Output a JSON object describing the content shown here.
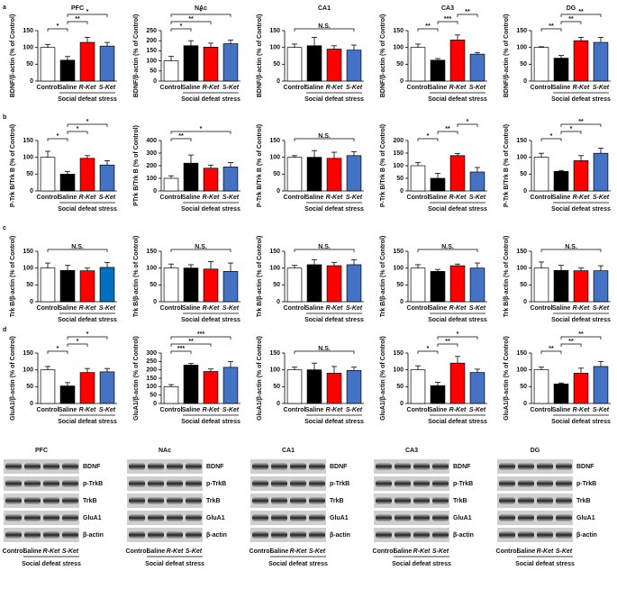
{
  "chart_data": [
    {
      "type": "bar",
      "panel": "a",
      "title": "PFC",
      "ylabel": "BDNF/β-actin (% of Control)",
      "categories": [
        "Control",
        "Saline",
        "R-Ket",
        "S-Ket"
      ],
      "group": "Social defeat stress",
      "colors": [
        "#ffffff",
        "#000000",
        "#ff0000",
        "#4472c4"
      ],
      "values": [
        100,
        62,
        115,
        104
      ],
      "errors": [
        9,
        11,
        15,
        11
      ],
      "ylim": [
        0,
        150
      ],
      "yticks": [
        0,
        50,
        100,
        150
      ],
      "significance": [
        {
          "label": "*",
          "from": 0,
          "to": 1
        },
        {
          "label": "**",
          "from": 1,
          "to": 2
        },
        {
          "label": "*",
          "from": 1,
          "to": 3
        }
      ]
    },
    {
      "type": "bar",
      "title": "NAc",
      "ylabel": "BDNF/β-actin (% of Control)",
      "categories": [
        "Control",
        "Saline",
        "R-Ket",
        "S-Ket"
      ],
      "group": "Social defeat stress",
      "colors": [
        "#ffffff",
        "#000000",
        "#ff0000",
        "#4472c4"
      ],
      "values": [
        100,
        175,
        168,
        185
      ],
      "errors": [
        22,
        25,
        20,
        18
      ],
      "ylim": [
        0,
        250
      ],
      "yticks": [
        0,
        50,
        100,
        150,
        200,
        250
      ],
      "significance": [
        {
          "label": "*",
          "from": 0,
          "to": 1
        },
        {
          "label": "**",
          "from": 0,
          "to": 2
        },
        {
          "label": "*",
          "from": 0,
          "to": 3
        }
      ]
    },
    {
      "type": "bar",
      "title": "CA1",
      "ylabel": "BDNF/β-actin (% of Control)",
      "categories": [
        "Control",
        "Saline",
        "R-Ket",
        "S-Ket"
      ],
      "group": "Social defeat stress",
      "colors": [
        "#ffffff",
        "#000000",
        "#ff0000",
        "#4472c4"
      ],
      "values": [
        100,
        105,
        95,
        92
      ],
      "errors": [
        10,
        25,
        10,
        15
      ],
      "ylim": [
        0,
        150
      ],
      "yticks": [
        0,
        50,
        100,
        150
      ],
      "significance": [
        {
          "label": "N.S.",
          "from": 0,
          "to": 3
        }
      ]
    },
    {
      "type": "bar",
      "title": "CA3",
      "ylabel": "BDNF/β-actin (% of Control)",
      "categories": [
        "Control",
        "Saline",
        "R-Ket",
        "S-Ket"
      ],
      "group": "Social defeat stress",
      "colors": [
        "#ffffff",
        "#000000",
        "#ff0000",
        "#4472c4"
      ],
      "values": [
        100,
        62,
        122,
        80
      ],
      "errors": [
        10,
        5,
        15,
        5
      ],
      "ylim": [
        0,
        150
      ],
      "yticks": [
        0,
        50,
        100,
        150
      ],
      "significance": [
        {
          "label": "**",
          "from": 0,
          "to": 1
        },
        {
          "label": "***",
          "from": 1,
          "to": 2
        },
        {
          "label": "**",
          "from": 2,
          "to": 3
        }
      ]
    },
    {
      "type": "bar",
      "title": "DG",
      "ylabel": "BDNF/β-actin (% of Control)",
      "categories": [
        "Control",
        "Saline",
        "R-Ket",
        "S-Ket"
      ],
      "group": "Social defeat stress",
      "colors": [
        "#ffffff",
        "#000000",
        "#ff0000",
        "#4472c4"
      ],
      "values": [
        100,
        68,
        120,
        115
      ],
      "errors": [
        2,
        8,
        10,
        15
      ],
      "ylim": [
        0,
        150
      ],
      "yticks": [
        0,
        50,
        100,
        150
      ],
      "significance": [
        {
          "label": "**",
          "from": 0,
          "to": 1
        },
        {
          "label": "**",
          "from": 1,
          "to": 2
        },
        {
          "label": "**",
          "from": 1,
          "to": 3
        }
      ]
    },
    {
      "type": "bar",
      "panel": "b",
      "ylabel": "P-Trk B/Trk B (% of Control)",
      "categories": [
        "Control",
        "Saline",
        "R-Ket",
        "S-Ket"
      ],
      "group": "Social defeat stress",
      "colors": [
        "#ffffff",
        "#000000",
        "#ff0000",
        "#4472c4"
      ],
      "values": [
        100,
        50,
        97,
        77
      ],
      "errors": [
        18,
        8,
        8,
        13
      ],
      "ylim": [
        0,
        150
      ],
      "yticks": [
        0,
        50,
        100,
        150
      ],
      "significance": [
        {
          "label": "*",
          "from": 0,
          "to": 1
        },
        {
          "label": "*",
          "from": 1,
          "to": 2
        },
        {
          "label": "*",
          "from": 1,
          "to": 3
        }
      ]
    },
    {
      "type": "bar",
      "ylabel": "PTrk B/Trk B (% of Control)",
      "categories": [
        "Control",
        "Saline",
        "R-Ket",
        "S-Ket"
      ],
      "group": "Social defeat stress",
      "colors": [
        "#ffffff",
        "#000000",
        "#ff0000",
        "#4472c4"
      ],
      "values": [
        100,
        220,
        180,
        190
      ],
      "errors": [
        20,
        65,
        25,
        35
      ],
      "ylim": [
        0,
        400
      ],
      "yticks": [
        0,
        100,
        200,
        300,
        400
      ],
      "significance": [
        {
          "label": "**",
          "from": 0,
          "to": 1
        },
        {
          "label": "*",
          "from": 0,
          "to": 3
        }
      ]
    },
    {
      "type": "bar",
      "ylabel": "P-Trk B/Trk B (% of Control)",
      "categories": [
        "Control",
        "Saline",
        "R-Ket",
        "S-Ket"
      ],
      "group": "Social defeat stress",
      "colors": [
        "#ffffff",
        "#000000",
        "#ff0000",
        "#4472c4"
      ],
      "values": [
        100,
        100,
        97,
        105
      ],
      "errors": [
        5,
        20,
        18,
        12
      ],
      "ylim": [
        0,
        150
      ],
      "yticks": [
        0,
        50,
        100,
        150
      ],
      "significance": [
        {
          "label": "N.S.",
          "from": 0,
          "to": 3
        }
      ]
    },
    {
      "type": "bar",
      "ylabel": "P-Trk B/Trk B (% of Control)",
      "categories": [
        "Control",
        "Saline",
        "R-Ket",
        "S-Ket"
      ],
      "group": "Social defeat stress",
      "colors": [
        "#ffffff",
        "#000000",
        "#ff0000",
        "#4472c4"
      ],
      "values": [
        100,
        50,
        140,
        75
      ],
      "errors": [
        12,
        20,
        8,
        18
      ],
      "ylim": [
        0,
        200
      ],
      "yticks": [
        0,
        50,
        100,
        150,
        200
      ],
      "significance": [
        {
          "label": "*",
          "from": 0,
          "to": 1
        },
        {
          "label": "**",
          "from": 1,
          "to": 2
        },
        {
          "label": "*",
          "from": 2,
          "to": 3
        }
      ]
    },
    {
      "type": "bar",
      "ylabel": "P-Trk B/Trk B (% of Control)",
      "categories": [
        "Control",
        "Saline",
        "R-Ket",
        "S-Ket"
      ],
      "group": "Social defeat stress",
      "colors": [
        "#ffffff",
        "#000000",
        "#ff0000",
        "#4472c4"
      ],
      "values": [
        100,
        58,
        90,
        112
      ],
      "errors": [
        12,
        3,
        15,
        15
      ],
      "ylim": [
        0,
        150
      ],
      "yticks": [
        0,
        50,
        100,
        150
      ],
      "significance": [
        {
          "label": "*",
          "from": 0,
          "to": 1
        },
        {
          "label": "*",
          "from": 1,
          "to": 2
        },
        {
          "label": "**",
          "from": 1,
          "to": 3
        }
      ]
    },
    {
      "type": "bar",
      "panel": "c",
      "ylabel": "Trk B/β-actin (% of Control)",
      "categories": [
        "Control",
        "Saline",
        "R-Ket",
        "S-Ket"
      ],
      "group": "Social defeat stress",
      "colors": [
        "#ffffff",
        "#000000",
        "#ff0000",
        "#0070c0"
      ],
      "values": [
        100,
        93,
        92,
        102
      ],
      "errors": [
        15,
        15,
        8,
        15
      ],
      "ylim": [
        0,
        150
      ],
      "yticks": [
        0,
        50,
        100,
        150
      ],
      "significance": [
        {
          "label": "N.S.",
          "from": 0,
          "to": 3
        }
      ]
    },
    {
      "type": "bar",
      "ylabel": "Trk B/β-actin (% of Control)",
      "categories": [
        "Control",
        "Saline",
        "R-Ket",
        "S-Ket"
      ],
      "group": "Social defeat stress",
      "colors": [
        "#ffffff",
        "#000000",
        "#ff0000",
        "#4472c4"
      ],
      "values": [
        100,
        100,
        97,
        90
      ],
      "errors": [
        12,
        10,
        22,
        25
      ],
      "ylim": [
        0,
        150
      ],
      "yticks": [
        0,
        50,
        100,
        150
      ],
      "significance": [
        {
          "label": "N.S.",
          "from": 0,
          "to": 3
        }
      ]
    },
    {
      "type": "bar",
      "ylabel": "Trk B/β-actin (% of Control)",
      "categories": [
        "Control",
        "Saline",
        "R-Ket",
        "S-Ket"
      ],
      "group": "Social defeat stress",
      "colors": [
        "#ffffff",
        "#000000",
        "#ff0000",
        "#4472c4"
      ],
      "values": [
        100,
        110,
        107,
        110
      ],
      "errors": [
        8,
        15,
        10,
        15
      ],
      "ylim": [
        0,
        150
      ],
      "yticks": [
        0,
        50,
        100,
        150
      ],
      "significance": [
        {
          "label": "N.S.",
          "from": 0,
          "to": 3
        }
      ]
    },
    {
      "type": "bar",
      "ylabel": "Trk B/β-actin (% of Control)",
      "categories": [
        "Control",
        "Saline",
        "R-Ket",
        "S-Ket"
      ],
      "group": "Social defeat stress",
      "colors": [
        "#ffffff",
        "#000000",
        "#ff0000",
        "#4472c4"
      ],
      "values": [
        100,
        90,
        107,
        100
      ],
      "errors": [
        10,
        6,
        5,
        15
      ],
      "ylim": [
        0,
        150
      ],
      "yticks": [
        0,
        50,
        100,
        150
      ],
      "significance": [
        {
          "label": "N.S.",
          "from": 0,
          "to": 3
        }
      ]
    },
    {
      "type": "bar",
      "ylabel": "Trk B/β-actin (% of Control)",
      "categories": [
        "Control",
        "Saline",
        "R-Ket",
        "S-Ket"
      ],
      "group": "Social defeat stress",
      "colors": [
        "#ffffff",
        "#000000",
        "#ff0000",
        "#4472c4"
      ],
      "values": [
        100,
        93,
        92,
        92
      ],
      "errors": [
        18,
        15,
        8,
        15
      ],
      "ylim": [
        0,
        150
      ],
      "yticks": [
        0,
        50,
        100,
        150
      ],
      "significance": [
        {
          "label": "N.S.",
          "from": 0,
          "to": 3
        }
      ]
    },
    {
      "type": "bar",
      "panel": "d",
      "ylabel": "GluA1/β-actin (% of Control)",
      "categories": [
        "Control",
        "Saline",
        "R-Ket",
        "S-Ket"
      ],
      "group": "Social defeat stress",
      "colors": [
        "#ffffff",
        "#000000",
        "#ff0000",
        "#4472c4"
      ],
      "values": [
        100,
        52,
        92,
        94
      ],
      "errors": [
        10,
        10,
        12,
        10
      ],
      "ylim": [
        0,
        150
      ],
      "yticks": [
        0,
        50,
        100,
        150
      ],
      "significance": [
        {
          "label": "*",
          "from": 0,
          "to": 1
        },
        {
          "label": "*",
          "from": 1,
          "to": 2
        },
        {
          "label": "*",
          "from": 1,
          "to": 3
        }
      ]
    },
    {
      "type": "bar",
      "ylabel": "GluA1/β-actin (% of Control)",
      "categories": [
        "Control",
        "Saline",
        "R-Ket",
        "S-Ket"
      ],
      "group": "Social defeat stress",
      "colors": [
        "#ffffff",
        "#000000",
        "#ff0000",
        "#4472c4"
      ],
      "values": [
        100,
        228,
        190,
        215
      ],
      "errors": [
        12,
        10,
        15,
        35
      ],
      "ylim": [
        0,
        300
      ],
      "yticks": [
        0,
        50,
        100,
        150,
        200,
        250,
        300
      ],
      "significance": [
        {
          "label": "***",
          "from": 0,
          "to": 1
        },
        {
          "label": "**",
          "from": 0,
          "to": 2
        },
        {
          "label": "***",
          "from": 0,
          "to": 3
        }
      ]
    },
    {
      "type": "bar",
      "ylabel": "GluA1/β-actin (% of Control)",
      "categories": [
        "Control",
        "Saline",
        "R-Ket",
        "S-Ket"
      ],
      "group": "Social defeat stress",
      "colors": [
        "#ffffff",
        "#000000",
        "#ff0000",
        "#4472c4"
      ],
      "values": [
        100,
        100,
        90,
        98
      ],
      "errors": [
        8,
        20,
        20,
        10
      ],
      "ylim": [
        0,
        150
      ],
      "yticks": [
        0,
        50,
        100,
        150
      ],
      "significance": [
        {
          "label": "N.S.",
          "from": 0,
          "to": 3
        }
      ]
    },
    {
      "type": "bar",
      "ylabel": "GluA1/β-actin (% of Control)",
      "categories": [
        "Control",
        "Saline",
        "R-Ket",
        "S-Ket"
      ],
      "group": "Social defeat stress",
      "colors": [
        "#ffffff",
        "#000000",
        "#ff0000",
        "#4472c4"
      ],
      "values": [
        100,
        53,
        120,
        92
      ],
      "errors": [
        12,
        10,
        20,
        10
      ],
      "ylim": [
        0,
        150
      ],
      "yticks": [
        0,
        50,
        100,
        150
      ],
      "significance": [
        {
          "label": "*",
          "from": 0,
          "to": 1
        },
        {
          "label": "**",
          "from": 1,
          "to": 2
        },
        {
          "label": "*",
          "from": 1,
          "to": 3
        }
      ]
    },
    {
      "type": "bar",
      "ylabel": "GluA1/β-actin (% of Control)",
      "categories": [
        "Control",
        "Saline",
        "R-Ket",
        "S-Ket"
      ],
      "group": "Social defeat stress",
      "colors": [
        "#ffffff",
        "#000000",
        "#ff0000",
        "#4472c4"
      ],
      "values": [
        100,
        58,
        90,
        110
      ],
      "errors": [
        8,
        3,
        15,
        15
      ],
      "ylim": [
        0,
        150
      ],
      "yticks": [
        0,
        50,
        100,
        150
      ],
      "significance": [
        {
          "label": "**",
          "from": 0,
          "to": 1
        },
        {
          "label": "**",
          "from": 1,
          "to": 2
        },
        {
          "label": "**",
          "from": 1,
          "to": 3
        }
      ]
    }
  ],
  "blots": [
    {
      "title": "PFC",
      "bands": [
        "BDNF",
        "p-TrkB",
        "TrkB",
        "GluA1",
        "β-actin"
      ],
      "categories": [
        "Control",
        "Saline",
        "R-Ket",
        "S-Ket"
      ],
      "group": "Social defeat stress"
    },
    {
      "title": "NAc",
      "bands": [
        "BDNF",
        "p-TrkB",
        "TrkB",
        "GluA1",
        "β-actin"
      ],
      "categories": [
        "Control",
        "Saline",
        "R-Ket",
        "S-Ket"
      ],
      "group": "Social defeat stress"
    },
    {
      "title": "CA1",
      "bands": [
        "BDNF",
        "p-TrkB",
        "TrkB",
        "GluA1",
        "β-actin"
      ],
      "categories": [
        "Control",
        "Saline",
        "R-Ket",
        "S-Ket"
      ],
      "group": "Social defeat stress"
    },
    {
      "title": "CA3",
      "bands": [
        "BDNF",
        "p-TrkB",
        "TrkB",
        "GluA1",
        "β-actin"
      ],
      "categories": [
        "Control",
        "Saline",
        "R-Ket",
        "S-Ket"
      ],
      "group": "Social defeat stress"
    },
    {
      "title": "DG",
      "bands": [
        "BDNF",
        "p-TrkB",
        "TrkB",
        "GluA1",
        "β-actin"
      ],
      "categories": [
        "Control",
        "Saline",
        "R-Ket",
        "S-Ket"
      ],
      "group": "Social defeat stress"
    }
  ]
}
